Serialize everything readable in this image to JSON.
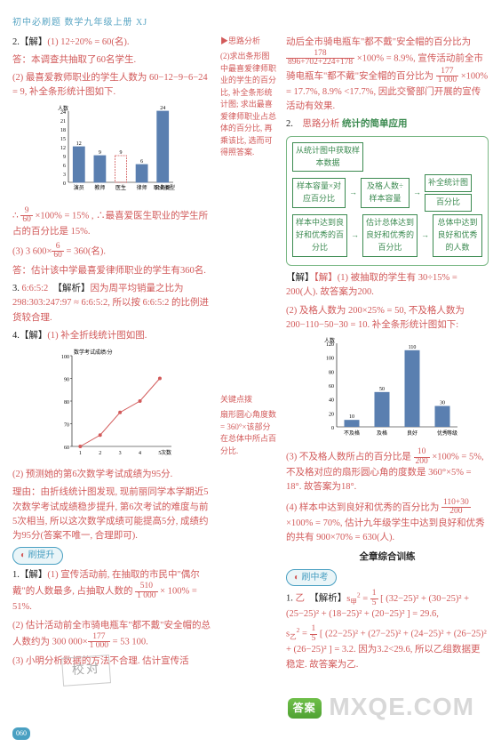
{
  "header": "初中必刷题  数学九年级上册  XJ",
  "left": {
    "q2_head": "2.【解】",
    "q2_1": "(1) 12÷20% = 60(名).",
    "q2_note": "答：本调查共抽取了60名学生.",
    "q2_2": "(2) 最喜爱教师职业的学生人数为 60−12−9−6−24 = 9, 补全条形统计图如下.",
    "q2_3a": "∴ ",
    "q2_3b": " ×100% = 15% , ∴最喜爱医生职业的学生所占的百分比是 15%.",
    "q2_4a": "(3) 3 600×",
    "q2_4b": " = 360(名).",
    "q2_5": "答：估计该中学最喜爱律师职业的学生有360名.",
    "q3": "3. 6:6:5:2　【解析】因为周平均销量之比为 298:303:247:97 ≈ 6:6:5:2, 所以按 6:6:5:2 的比例进货较合理.",
    "q4_head": "4.【解】(1) 补全折线统计图如图.",
    "q4_2": "(2) 预测她的第6次数学考试成绩为95分.",
    "q4_3": "理由：由折线统计图发现, 现前丽同学本学期近5次数学考试成绩稳步提升, 第6次考试的难度与前5次相当, 所以这次数学成绩可能提高5分, 成绩约为95分(答案不唯一, 合理即可).",
    "t1_head": "1.【解】",
    "t1_1a": "(1) 宣传活动前, 在抽取的市民中\"偶尔戴\"的人数最多, 占抽取人数的 ",
    "t1_1b": " × 100% = 51%.",
    "t1_2a": "(2) 估计活动前全市骑电瓶车\"都不戴\"安全帽的总人数约为 300 000×",
    "t1_2b": " = 53 100.",
    "t1_3": "(3) 小明分析数据的方法不合理. 估计宣传活",
    "badge_tisheng": "刷提升"
  },
  "mid": {
    "m1": "▶思路分析",
    "m2": "(2)求出条形图中最喜爱律师职业的学生的百分比, 补全条形统计图; 求出最喜爱律师职业占总体的百分比, 再乘该比, 选而可得照答案.",
    "m3": "关键点拨",
    "m4": "扇形圆心角度数 = 360°×该部分在总体中所占百分比."
  },
  "right": {
    "r1a": "动后全市骑电瓶车\"都不戴\"安全帽的百分比为 ",
    "r1b": " ×100% = 8.9%, 宣传活动前全市骑电瓶车\"都不戴\"安全帽的百分比为 ",
    "r1c": " ×100% = 17.7%, 8.9% <17.7%, 因此交警部门开展的宣传活动有效果.",
    "r2_head": "2.　思路分析  统计的简单应用",
    "flow_a": "从统计图中获取样本数据",
    "flow_b1": "样本容量×对应百分比",
    "flow_b2": "及格人数÷样本容量",
    "flow_b3": "补全统计图",
    "flow_b4": "百分比",
    "flow_c1": "样本中达到良好和优秀的百分比",
    "flow_c2": "估计总体达到良好和优秀的百分比",
    "flow_c3": "总体中达到良好和优秀的人数",
    "r2_1": "【解】(1) 被抽取的学生有 30÷15% = 200(人). 故答案为200.",
    "r2_2": "(2) 及格人数为 200×25% = 50, 不及格人数为 200−110−50−30 = 10. 补全条形统计图如下:",
    "r2_3a": "(3) 不及格人数所占的百分比是 ",
    "r2_3b": " ×100% = 5%, 不及格对应的扇形圆心角的度数是 360°×5% = 18°. 故答案为18°.",
    "r2_4a": "(4) 样本中达到良好和优秀的百分比为 ",
    "r2_4b": " ×100% = 70%, 估计九年级学生中达到良好和优秀的共有 900×70% = 630(人).",
    "sect": "全章综合训练",
    "badge_zk": "刷中考",
    "zk_head": "1. 乙　【解析】",
    "zk_1": "s²甲 = 1/5 [ (32−25)² + (30−25)² + (25−25)² + (18−25)² + (20−25)² ] = 29.6,",
    "zk_2": "s²乙 = 1/5 [ (22−25)² + (27−25)² + (24−25)² + (26−25)² + (26−25)² ] = 3.2. 因为3.2<29.6, 所以乙组数据更稳定. 故答案为乙."
  },
  "page": "060",
  "chart1": {
    "bars": [
      12,
      9,
      9,
      6,
      24
    ],
    "labels": [
      "演员",
      "教师",
      "医生",
      "律师",
      "公务员"
    ],
    "ylabel": "人数",
    "xlabel": "职业类型",
    "ymax": 24,
    "ystep": 3,
    "bar_color": "#5a7fb0",
    "highlight_idx": 2,
    "highlight_color": "#d25a5a"
  },
  "chart2": {
    "y": [
      60,
      65,
      75,
      80,
      90
    ],
    "x": [
      1,
      2,
      3,
      4,
      5
    ],
    "ylabel": "数学考试成绩/分",
    "xlabel": "次数",
    "ymin": 60,
    "ymax": 100,
    "ystep": 10,
    "point_color": "#d25a5a",
    "line_color": "#d25a5a"
  },
  "chart3": {
    "bars": [
      10,
      50,
      110,
      30
    ],
    "labels": [
      "不及格",
      "及格",
      "良好",
      "优秀"
    ],
    "ylabel": "人数",
    "xlabel": "等级",
    "ymax": 120,
    "ystep": 20,
    "bar_color": "#5a7fb0"
  }
}
